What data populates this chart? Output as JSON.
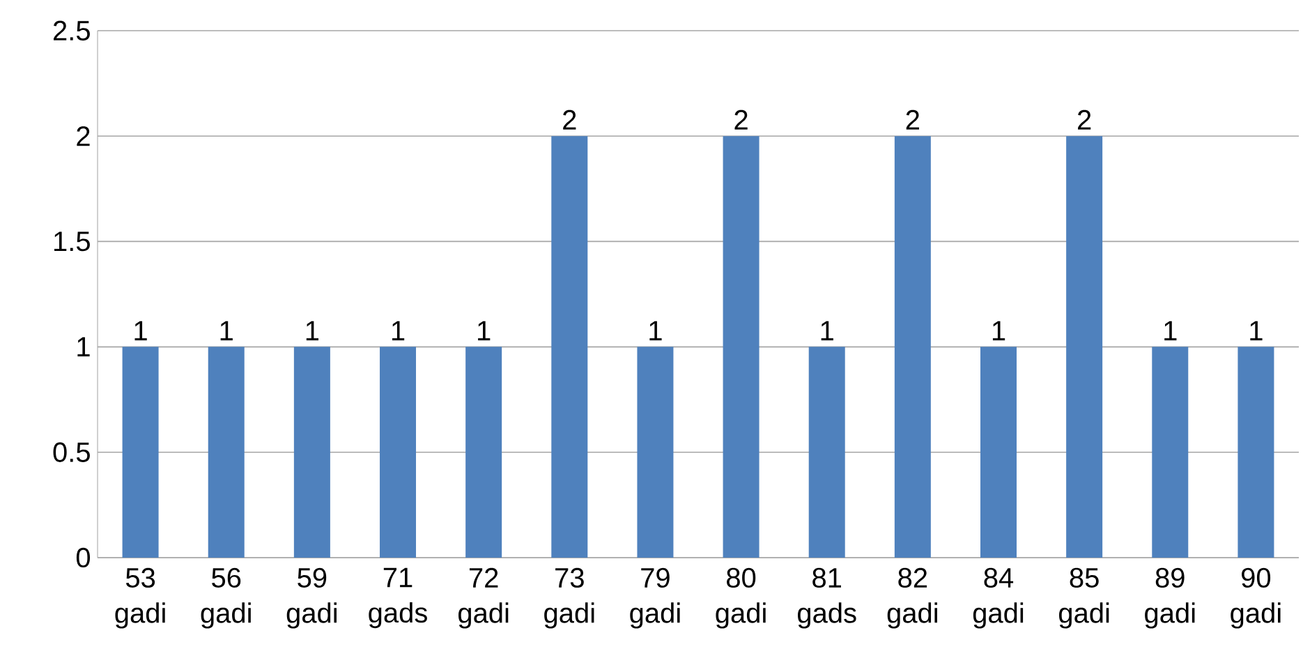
{
  "chart_data": {
    "type": "bar",
    "categories": [
      "53 gadi",
      "56 gadi",
      "59 gadi",
      "71 gads",
      "72 gadi",
      "73 gadi",
      "79 gadi",
      "80 gadi",
      "81 gads",
      "82 gadi",
      "84 gadi",
      "85 gadi",
      "89 gadi",
      "90 gadi"
    ],
    "values": [
      1,
      1,
      1,
      1,
      1,
      2,
      1,
      2,
      1,
      2,
      1,
      2,
      1,
      1
    ],
    "color": "#4f81bd",
    "ylim": [
      0,
      2.5
    ],
    "yticks": [
      0,
      0.5,
      1,
      1.5,
      2,
      2.5
    ],
    "grid": "y",
    "data_labels": true
  }
}
